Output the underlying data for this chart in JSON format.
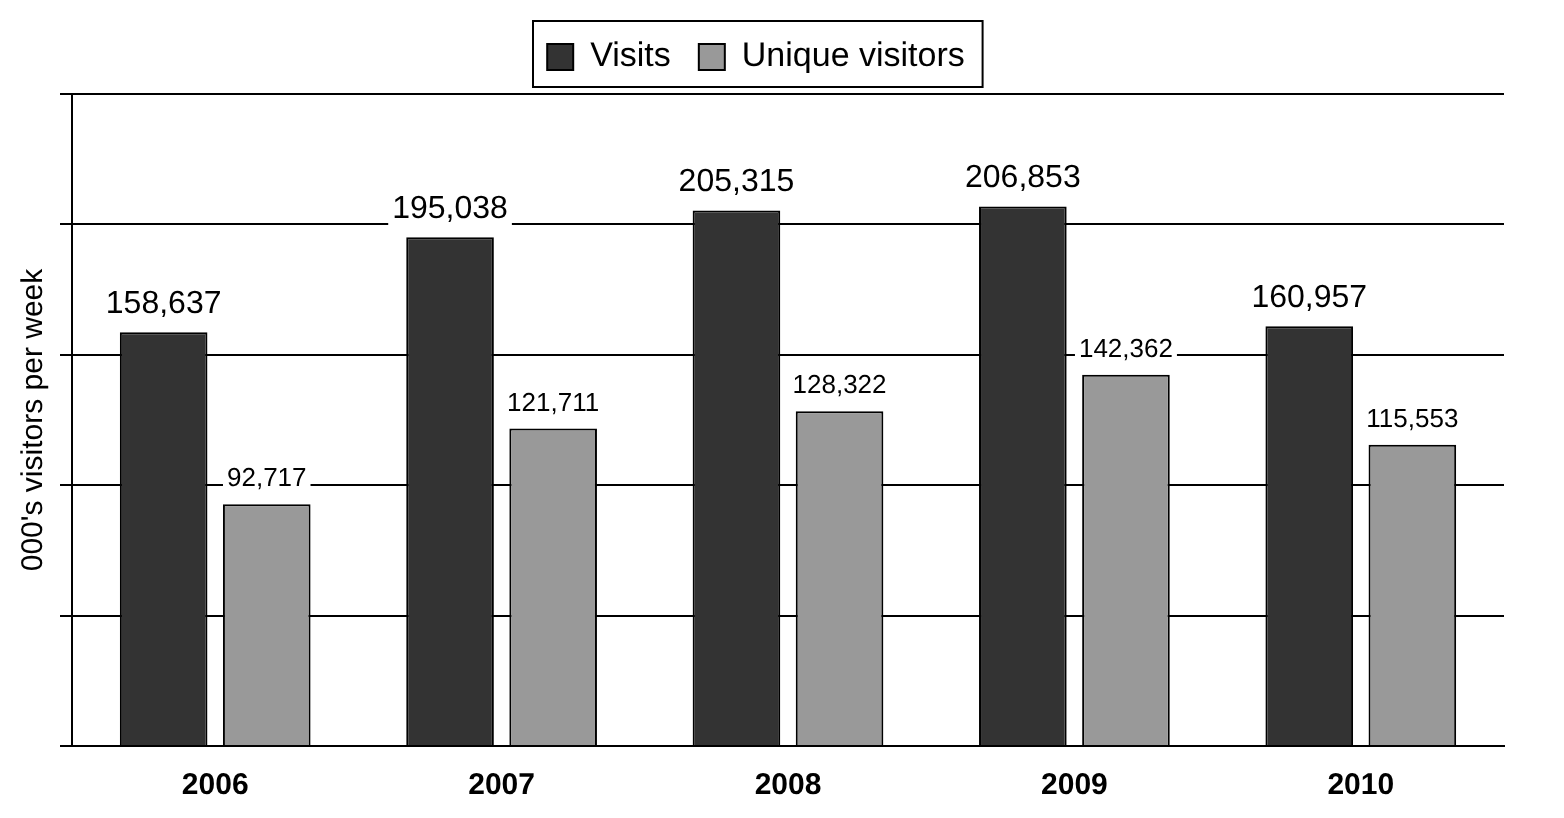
{
  "chart_data": {
    "type": "bar",
    "ylabel": "000's visitors per week",
    "categories": [
      "2006",
      "2007",
      "2008",
      "2009",
      "2010"
    ],
    "series": [
      {
        "name": "Visits",
        "color": "#333333",
        "values": [
          158637,
          195038,
          205315,
          206853,
          160957
        ],
        "value_labels": [
          "158,637",
          "195,038",
          "205,315",
          "206,853",
          "160,957"
        ]
      },
      {
        "name": "Unique visitors",
        "color": "#999999",
        "values": [
          92717,
          121711,
          128322,
          142362,
          115553
        ],
        "value_labels": [
          "92,717",
          "121,711",
          "128,322",
          "142,362",
          "115,553"
        ]
      }
    ],
    "tick_labels": "x",
    "grid": "y",
    "legend": "top"
  }
}
